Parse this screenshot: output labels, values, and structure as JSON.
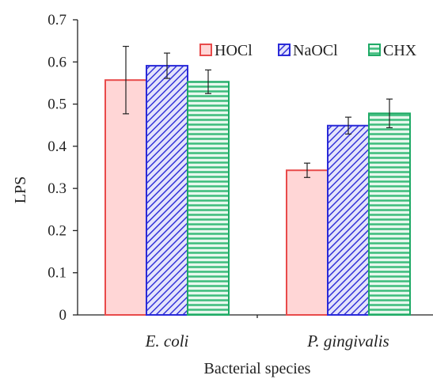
{
  "chart_data": {
    "type": "bar",
    "xlabel": "Bacterial species",
    "ylabel": "LPS",
    "ylim": [
      0,
      0.7
    ],
    "yticks": [
      "0",
      "0.1",
      "0.2",
      "0.3",
      "0.4",
      "0.5",
      "0.6",
      "0.7"
    ],
    "categories": [
      "E. coli",
      "P. gingivalis"
    ],
    "series": [
      {
        "name": "HOCl",
        "values": [
          0.557,
          0.343
        ],
        "errors": [
          0.08,
          0.017
        ],
        "fill": "#ffd6d6",
        "stroke": "#e84a4a",
        "pattern": "solid"
      },
      {
        "name": "NaOCl",
        "values": [
          0.591,
          0.449
        ],
        "errors": [
          0.03,
          0.02
        ],
        "fill": "#9a9aee",
        "stroke": "#2a2ad8",
        "pattern": "diagonal"
      },
      {
        "name": "CHX",
        "values": [
          0.553,
          0.478
        ],
        "errors": [
          0.028,
          0.034
        ],
        "fill": "#c4ecd4",
        "stroke": "#1faa66",
        "pattern": "horizontal"
      }
    ],
    "legend_position": "top-right",
    "grid": false
  }
}
